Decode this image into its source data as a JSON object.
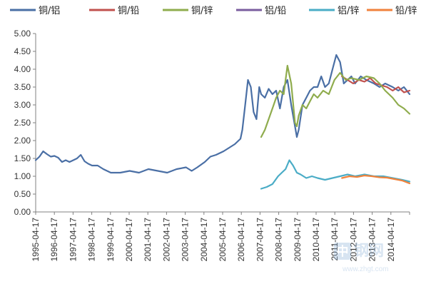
{
  "chart_data": {
    "type": "line",
    "ylim": [
      0,
      5
    ],
    "yticks": [
      "0.00",
      "0.50",
      "1.00",
      "1.50",
      "2.00",
      "2.50",
      "3.00",
      "3.50",
      "4.00",
      "4.50",
      "5.00"
    ],
    "xticks": [
      "1995-04-17",
      "1996-04-17",
      "1997-04-17",
      "1998-04-17",
      "1999-04-17",
      "2000-04-17",
      "2001-04-17",
      "2002-04-17",
      "2003-04-17",
      "2004-04-17",
      "2005-04-17",
      "2006-04-17",
      "2007-04-17",
      "2008-04-17",
      "2009-04-17",
      "2010-04-17",
      "2011-04-17",
      "2012-04-17",
      "2013-04-17",
      "2014-04-17"
    ],
    "xlim": [
      1995.0,
      2014.9
    ],
    "legend_position": "top",
    "series": [
      {
        "name": "铜/铝",
        "color": "#4a6fa5",
        "x": [
          1995.0,
          1995.2,
          1995.4,
          1995.6,
          1995.8,
          1996.0,
          1996.2,
          1996.4,
          1996.6,
          1996.8,
          1997.0,
          1997.2,
          1997.4,
          1997.6,
          1997.8,
          1998.0,
          1998.3,
          1998.6,
          1999.0,
          1999.5,
          2000.0,
          2000.5,
          2001.0,
          2001.5,
          2002.0,
          2002.5,
          2003.0,
          2003.3,
          2003.6,
          2004.0,
          2004.3,
          2004.6,
          2005.0,
          2005.3,
          2005.6,
          2005.9,
          2006.0,
          2006.15,
          2006.3,
          2006.45,
          2006.6,
          2006.75,
          2006.9,
          2007.0,
          2007.2,
          2007.4,
          2007.6,
          2007.8,
          2008.0,
          2008.2,
          2008.4,
          2008.6,
          2008.8,
          2008.9,
          2009.0,
          2009.2,
          2009.4,
          2009.6,
          2009.8,
          2010.0,
          2010.2,
          2010.4,
          2010.6,
          2010.8,
          2011.0,
          2011.2,
          2011.4,
          2011.6,
          2011.8,
          2012.0,
          2012.3,
          2012.6,
          2013.0,
          2013.3,
          2013.6,
          2014.0,
          2014.3,
          2014.6,
          2014.9
        ],
        "y": [
          1.45,
          1.55,
          1.7,
          1.62,
          1.55,
          1.57,
          1.52,
          1.4,
          1.45,
          1.4,
          1.45,
          1.5,
          1.6,
          1.42,
          1.35,
          1.3,
          1.3,
          1.2,
          1.1,
          1.1,
          1.15,
          1.1,
          1.2,
          1.15,
          1.1,
          1.2,
          1.25,
          1.15,
          1.25,
          1.4,
          1.55,
          1.6,
          1.7,
          1.8,
          1.9,
          2.05,
          2.3,
          3.0,
          3.7,
          3.5,
          2.8,
          2.6,
          3.5,
          3.3,
          3.2,
          3.45,
          3.3,
          3.4,
          2.9,
          3.5,
          3.7,
          3.0,
          2.4,
          2.1,
          2.3,
          3.0,
          3.2,
          3.4,
          3.5,
          3.5,
          3.8,
          3.5,
          3.6,
          4.0,
          4.4,
          4.2,
          3.6,
          3.7,
          3.8,
          3.6,
          3.8,
          3.7,
          3.6,
          3.5,
          3.6,
          3.5,
          3.4,
          3.5,
          3.3
        ]
      },
      {
        "name": "铜/铅",
        "color": "#c0504d",
        "x": [
          2011.3,
          2011.6,
          2011.9,
          2012.2,
          2012.5,
          2012.8,
          2013.1,
          2013.4,
          2013.7,
          2014.0,
          2014.3,
          2014.6,
          2014.9
        ],
        "y": [
          3.8,
          3.7,
          3.6,
          3.7,
          3.65,
          3.75,
          3.6,
          3.55,
          3.5,
          3.4,
          3.5,
          3.35,
          3.4
        ]
      },
      {
        "name": "铜/锌",
        "color": "#8fac4d",
        "x": [
          2007.0,
          2007.2,
          2007.4,
          2007.6,
          2007.8,
          2008.0,
          2008.2,
          2008.4,
          2008.6,
          2008.8,
          2008.9,
          2009.0,
          2009.2,
          2009.4,
          2009.6,
          2009.8,
          2010.0,
          2010.3,
          2010.6,
          2010.9,
          2011.2,
          2011.5,
          2011.8,
          2012.2,
          2012.6,
          2013.0,
          2013.3,
          2013.6,
          2014.0,
          2014.3,
          2014.6,
          2014.9
        ],
        "y": [
          2.1,
          2.3,
          2.6,
          2.9,
          3.2,
          3.4,
          3.3,
          4.1,
          3.6,
          2.5,
          2.4,
          2.7,
          3.0,
          2.9,
          3.1,
          3.3,
          3.2,
          3.4,
          3.3,
          3.7,
          3.9,
          3.7,
          3.75,
          3.7,
          3.8,
          3.75,
          3.6,
          3.4,
          3.2,
          3.0,
          2.9,
          2.75
        ]
      },
      {
        "name": "铝/铅",
        "color": "#7a5c9e",
        "x": [],
        "y": []
      },
      {
        "name": "铝/锌",
        "color": "#4aacc6",
        "x": [
          2007.0,
          2007.3,
          2007.6,
          2007.9,
          2008.1,
          2008.3,
          2008.5,
          2008.7,
          2008.9,
          2009.1,
          2009.4,
          2009.7,
          2010.0,
          2010.4,
          2010.8,
          2011.2,
          2011.6,
          2012.0,
          2012.5,
          2013.0,
          2013.5,
          2014.0,
          2014.5,
          2014.9
        ],
        "y": [
          0.65,
          0.7,
          0.78,
          1.0,
          1.1,
          1.2,
          1.45,
          1.3,
          1.1,
          1.05,
          0.95,
          1.0,
          0.95,
          0.9,
          0.95,
          1.0,
          1.05,
          1.0,
          1.05,
          1.0,
          1.0,
          0.95,
          0.9,
          0.85
        ]
      },
      {
        "name": "铅/锌",
        "color": "#f0823c",
        "x": [
          2011.3,
          2011.7,
          2012.1,
          2012.5,
          2012.9,
          2013.3,
          2013.7,
          2014.1,
          2014.5,
          2014.9
        ],
        "y": [
          0.95,
          1.0,
          0.98,
          1.02,
          1.0,
          0.97,
          0.96,
          0.92,
          0.88,
          0.8
        ]
      }
    ]
  },
  "watermark": {
    "glyph_main": "中",
    "glyph_rest": "钢网",
    "sub": "www.zhgt.com"
  }
}
